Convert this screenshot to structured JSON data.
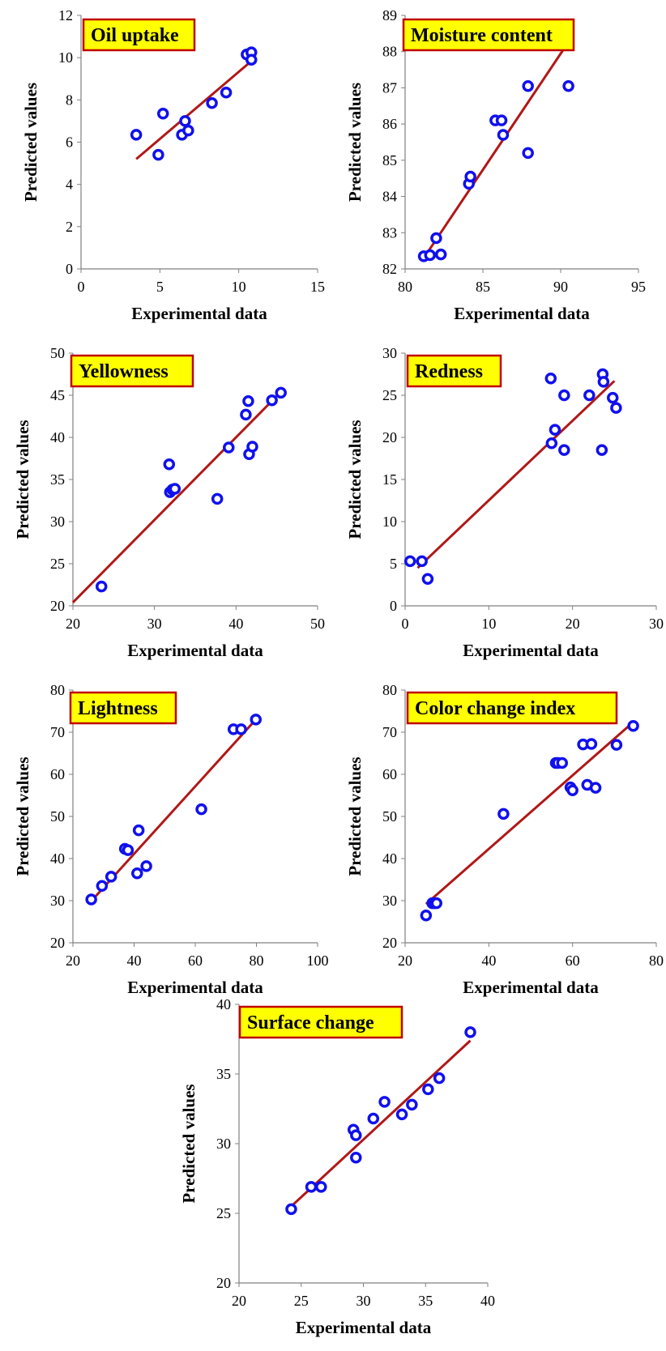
{
  "chart_data": [
    {
      "type": "scatter",
      "title": "Oil uptake",
      "xlabel": "Experimental data",
      "ylabel": "Predicted values",
      "xlim": [
        0,
        15
      ],
      "ylim": [
        0,
        12
      ],
      "xticks": [
        "0",
        "5",
        "10",
        "15"
      ],
      "yticks": [
        "0",
        "2",
        "4",
        "6",
        "8",
        "10",
        "12"
      ],
      "grid": false,
      "marker_color": "#1010ee",
      "line_color": "#b01818",
      "title_bg": "#ffff00",
      "title_border": "#c00000",
      "points": [
        [
          3.5,
          6.35
        ],
        [
          5.2,
          7.35
        ],
        [
          4.9,
          5.4
        ],
        [
          6.6,
          7.0
        ],
        [
          6.4,
          6.35
        ],
        [
          6.8,
          6.55
        ],
        [
          8.3,
          7.85
        ],
        [
          9.2,
          8.35
        ],
        [
          10.5,
          10.15
        ],
        [
          10.8,
          10.25
        ],
        [
          10.8,
          9.9
        ]
      ],
      "fit_line": [
        [
          3.5,
          5.2
        ],
        [
          10.9,
          9.9
        ]
      ]
    },
    {
      "type": "scatter",
      "title": "Moisture content",
      "xlabel": "Experimental data",
      "ylabel": "Predicted values",
      "xlim": [
        80,
        95
      ],
      "ylim": [
        82,
        89
      ],
      "xticks": [
        "80",
        "85",
        "90",
        "95"
      ],
      "yticks": [
        "82",
        "83",
        "84",
        "85",
        "86",
        "87",
        "88",
        "89"
      ],
      "grid": false,
      "marker_color": "#1010ee",
      "line_color": "#b01818",
      "title_bg": "#ffff00",
      "title_border": "#c00000",
      "points": [
        [
          81.2,
          82.35
        ],
        [
          81.6,
          82.38
        ],
        [
          82.0,
          82.85
        ],
        [
          82.3,
          82.4
        ],
        [
          84.1,
          84.35
        ],
        [
          84.2,
          84.55
        ],
        [
          85.8,
          86.1
        ],
        [
          86.2,
          86.1
        ],
        [
          86.3,
          85.7
        ],
        [
          87.9,
          87.05
        ],
        [
          87.9,
          85.2
        ],
        [
          90.5,
          87.05
        ]
      ],
      "fit_line": [
        [
          81.2,
          82.3
        ],
        [
          90.4,
          88.2
        ]
      ]
    },
    {
      "type": "scatter",
      "title": "Yellowness",
      "xlabel": "Experimental data",
      "ylabel": "Predicted values",
      "xlim": [
        20,
        50
      ],
      "ylim": [
        20,
        50
      ],
      "xticks": [
        "20",
        "30",
        "40",
        "50"
      ],
      "yticks": [
        "20",
        "25",
        "30",
        "35",
        "40",
        "45",
        "50"
      ],
      "grid": false,
      "marker_color": "#1010ee",
      "line_color": "#b01818",
      "title_bg": "#ffff00",
      "title_border": "#c00000",
      "points": [
        [
          23.5,
          22.3
        ],
        [
          31.8,
          36.8
        ],
        [
          31.9,
          33.5
        ],
        [
          32.2,
          33.8
        ],
        [
          32.5,
          33.9
        ],
        [
          37.7,
          32.7
        ],
        [
          39.1,
          38.8
        ],
        [
          41.2,
          42.7
        ],
        [
          41.5,
          44.3
        ],
        [
          41.6,
          38.0
        ],
        [
          42.0,
          38.9
        ],
        [
          44.4,
          44.4
        ],
        [
          45.5,
          45.3
        ]
      ],
      "fit_line": [
        [
          20.0,
          20.4
        ],
        [
          45.4,
          45.3
        ]
      ]
    },
    {
      "type": "scatter",
      "title": "Redness",
      "xlabel": "Experimental data",
      "ylabel": "Predicted values",
      "xlim": [
        0,
        30
      ],
      "ylim": [
        0,
        30
      ],
      "xticks": [
        "0",
        "10",
        "20",
        "30"
      ],
      "yticks": [
        "0",
        "5",
        "10",
        "15",
        "20",
        "25",
        "30"
      ],
      "grid": false,
      "marker_color": "#1010ee",
      "line_color": "#b01818",
      "title_bg": "#ffff00",
      "title_border": "#c00000",
      "points": [
        [
          0.6,
          5.3
        ],
        [
          2.0,
          5.3
        ],
        [
          2.7,
          3.2
        ],
        [
          17.4,
          27.0
        ],
        [
          17.5,
          19.3
        ],
        [
          17.9,
          20.9
        ],
        [
          19.0,
          25.0
        ],
        [
          19.0,
          18.5
        ],
        [
          22.0,
          25.0
        ],
        [
          23.5,
          18.5
        ],
        [
          23.6,
          27.5
        ],
        [
          23.7,
          26.6
        ],
        [
          24.8,
          24.7
        ],
        [
          25.2,
          23.5
        ]
      ],
      "fit_line": [
        [
          1.5,
          4.5
        ],
        [
          25.0,
          26.7
        ]
      ]
    },
    {
      "type": "scatter",
      "title": "Lightness",
      "xlabel": "Experimental data",
      "ylabel": "Predicted values",
      "xlim": [
        20,
        100
      ],
      "ylim": [
        20,
        80
      ],
      "xticks": [
        "20",
        "40",
        "60",
        "80",
        "100"
      ],
      "yticks": [
        "20",
        "30",
        "40",
        "50",
        "60",
        "70",
        "80"
      ],
      "grid": false,
      "marker_color": "#1010ee",
      "line_color": "#b01818",
      "title_bg": "#ffff00",
      "title_border": "#c00000",
      "points": [
        [
          26.0,
          30.3
        ],
        [
          29.5,
          33.5
        ],
        [
          32.5,
          35.7
        ],
        [
          37.0,
          42.3
        ],
        [
          38.0,
          42.0
        ],
        [
          41.0,
          36.5
        ],
        [
          41.5,
          46.7
        ],
        [
          44.0,
          38.2
        ],
        [
          62.0,
          51.7
        ],
        [
          72.5,
          70.7
        ],
        [
          75.0,
          70.7
        ],
        [
          79.8,
          73.0
        ]
      ],
      "fit_line": [
        [
          26.0,
          29.9
        ],
        [
          79.8,
          73.0
        ]
      ]
    },
    {
      "type": "scatter",
      "title": "Color change index",
      "xlabel": "Experimental data",
      "ylabel": "Predicted values",
      "xlim": [
        20,
        80
      ],
      "ylim": [
        20,
        80
      ],
      "xticks": [
        "20",
        "40",
        "60",
        "80"
      ],
      "yticks": [
        "20",
        "30",
        "40",
        "50",
        "60",
        "70",
        "80"
      ],
      "grid": false,
      "marker_color": "#1010ee",
      "line_color": "#b01818",
      "title_bg": "#ffff00",
      "title_border": "#c00000",
      "points": [
        [
          25.0,
          26.5
        ],
        [
          26.5,
          29.4
        ],
        [
          27.0,
          29.4
        ],
        [
          27.5,
          29.4
        ],
        [
          43.5,
          50.6
        ],
        [
          56.0,
          62.7
        ],
        [
          56.5,
          62.7
        ],
        [
          57.5,
          62.7
        ],
        [
          59.5,
          56.9
        ],
        [
          60.0,
          56.2
        ],
        [
          62.5,
          67.1
        ],
        [
          63.5,
          57.5
        ],
        [
          64.5,
          67.2
        ],
        [
          65.5,
          56.8
        ],
        [
          70.5,
          67.0
        ],
        [
          74.5,
          71.5
        ]
      ],
      "fit_line": [
        [
          25.0,
          29.2
        ],
        [
          74.5,
          72.4
        ]
      ]
    },
    {
      "type": "scatter",
      "title": "Surface change",
      "xlabel": "Experimental data",
      "ylabel": "Predicted values",
      "xlim": [
        20,
        40
      ],
      "ylim": [
        20,
        40
      ],
      "xticks": [
        "20",
        "25",
        "30",
        "35",
        "40"
      ],
      "yticks": [
        "20",
        "25",
        "30",
        "35",
        "40"
      ],
      "grid": false,
      "marker_color": "#1010ee",
      "line_color": "#b01818",
      "title_bg": "#ffff00",
      "title_border": "#c00000",
      "points": [
        [
          24.2,
          25.3
        ],
        [
          25.8,
          26.9
        ],
        [
          26.6,
          26.9
        ],
        [
          29.2,
          31.0
        ],
        [
          29.4,
          30.6
        ],
        [
          29.4,
          29.0
        ],
        [
          30.8,
          31.8
        ],
        [
          31.7,
          33.0
        ],
        [
          33.1,
          32.1
        ],
        [
          33.9,
          32.8
        ],
        [
          35.2,
          33.9
        ],
        [
          36.1,
          34.7
        ],
        [
          38.6,
          38.0
        ]
      ],
      "fit_line": [
        [
          24.2,
          25.5
        ],
        [
          38.6,
          37.4
        ]
      ]
    }
  ]
}
